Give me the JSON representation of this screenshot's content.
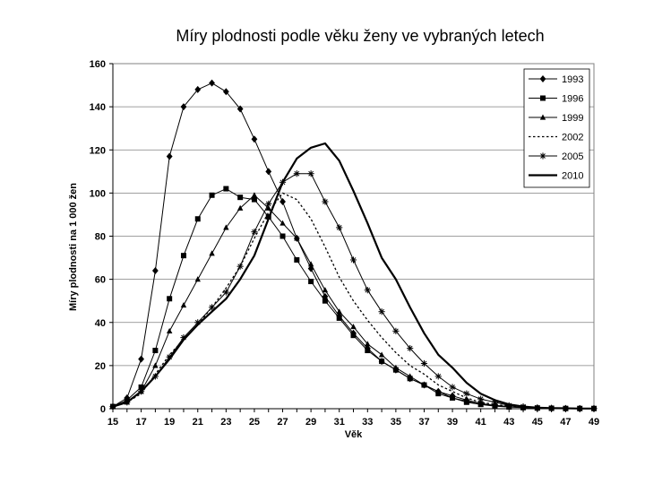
{
  "chart_data": {
    "type": "line",
    "title": "Míry plodnosti podle věku ženy ve vybraných letech",
    "xlabel": "Věk",
    "ylabel": "Míry plodnosti na 1 000 žen",
    "ylim": [
      0,
      160
    ],
    "xlim": [
      15,
      49
    ],
    "yticks": [
      0,
      20,
      40,
      60,
      80,
      100,
      120,
      140,
      160
    ],
    "xticks": [
      15,
      17,
      19,
      21,
      23,
      25,
      27,
      29,
      31,
      33,
      35,
      37,
      39,
      41,
      43,
      45,
      47,
      49
    ],
    "grid": "horizontal",
    "legend_position": "top-right",
    "x": [
      15,
      16,
      17,
      18,
      19,
      20,
      21,
      22,
      23,
      24,
      25,
      26,
      27,
      28,
      29,
      30,
      31,
      32,
      33,
      34,
      35,
      36,
      37,
      38,
      39,
      40,
      41,
      42,
      43,
      44,
      45,
      46,
      47,
      48,
      49
    ],
    "series": [
      {
        "name": "1993",
        "marker": "diamond",
        "style": "solid",
        "width": 1,
        "values": [
          1,
          5,
          23,
          64,
          117,
          140,
          148,
          151,
          147,
          139,
          125,
          110,
          96,
          79,
          65,
          52,
          43,
          35,
          28,
          22,
          18,
          14,
          11,
          8,
          6,
          4,
          2.5,
          1.5,
          1,
          0.5,
          0.3,
          0.2,
          0.1,
          0.1,
          0.1
        ]
      },
      {
        "name": "1996",
        "marker": "square",
        "style": "solid",
        "width": 1,
        "values": [
          1,
          4,
          10,
          27,
          51,
          71,
          88,
          99,
          102,
          98,
          97,
          89,
          80,
          69,
          59,
          50,
          42,
          34,
          27,
          22,
          18,
          14,
          11,
          7,
          5,
          3,
          2,
          1.2,
          0.8,
          0.5,
          0.3,
          0.2,
          0.1,
          0.1,
          0.1
        ]
      },
      {
        "name": "1999",
        "marker": "triangle",
        "style": "solid",
        "width": 1,
        "values": [
          1,
          3,
          8,
          20,
          36,
          48,
          60,
          72,
          84,
          93,
          99,
          93,
          86,
          79,
          67,
          55,
          45,
          38,
          30,
          25,
          19,
          15,
          11,
          8,
          5,
          3.5,
          2,
          1.5,
          1,
          0.5,
          0.3,
          0.2,
          0.1,
          0.1,
          0.1
        ]
      },
      {
        "name": "2002",
        "marker": "none",
        "style": "dotted",
        "width": 1.3,
        "values": [
          1,
          3,
          7,
          16,
          25,
          32,
          39,
          47,
          56,
          66,
          79,
          91,
          100,
          97,
          88,
          75,
          61,
          50,
          41,
          33,
          26,
          20,
          16,
          11,
          8,
          5,
          3,
          2,
          1.2,
          0.8,
          0.4,
          0.2,
          0.1,
          0.1,
          0.1
        ]
      },
      {
        "name": "2005",
        "marker": "star",
        "style": "solid",
        "width": 1,
        "values": [
          1,
          3,
          8,
          15,
          24,
          33,
          40,
          47,
          54,
          66,
          82,
          95,
          105,
          109,
          109,
          96,
          84,
          69,
          55,
          45,
          36,
          28,
          21,
          15,
          10,
          7,
          4.5,
          3,
          1.5,
          1,
          0.5,
          0.3,
          0.2,
          0.1,
          0.1
        ]
      },
      {
        "name": "2010",
        "marker": "none",
        "style": "solid",
        "width": 2.2,
        "values": [
          1,
          3,
          8,
          15,
          23,
          32,
          39,
          45,
          51,
          60,
          71,
          88,
          105,
          116,
          121,
          123,
          115,
          101,
          86,
          70,
          60,
          47,
          35,
          25,
          19,
          12,
          7,
          4,
          2,
          1,
          0.5,
          0.3,
          0.2,
          0.1,
          0.1
        ]
      }
    ]
  }
}
